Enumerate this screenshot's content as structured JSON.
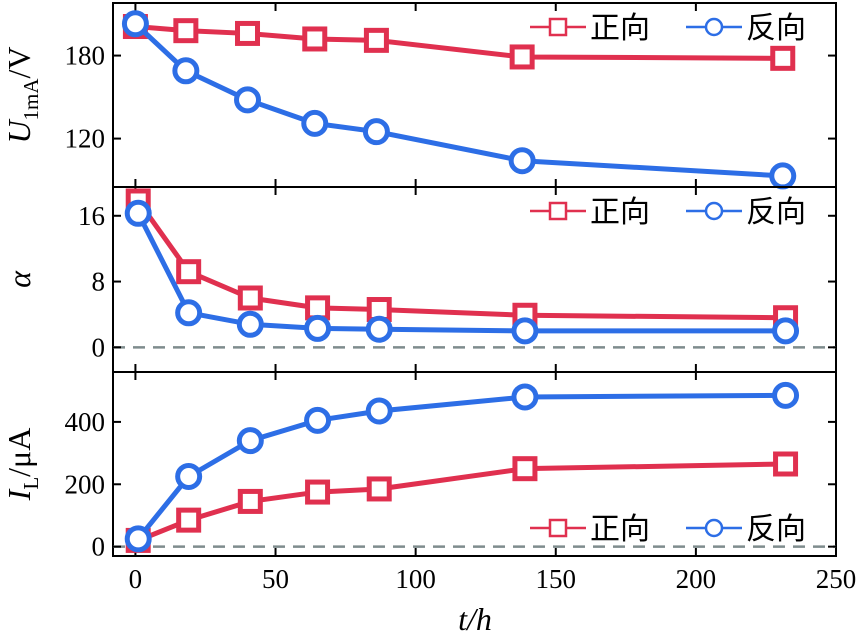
{
  "chart_data": {
    "type": "line",
    "xlabel": "t/h",
    "xlim": [
      -8,
      250
    ],
    "xticks": [
      0,
      50,
      100,
      150,
      200,
      250
    ],
    "xtick_labels": [
      "0",
      "50",
      "100",
      "150",
      "200",
      "250"
    ],
    "colors": {
      "forward": "#e0304f",
      "reverse": "#2d6ee6",
      "zero_line": "#7f8c8d"
    },
    "panels": [
      {
        "id": "u1ma",
        "ylabel": {
          "main": "U",
          "sub": "1mA",
          "unit": "/V"
        },
        "ylim": [
          85,
          218
        ],
        "yticks": [
          120,
          180
        ],
        "ytick_labels": [
          "120",
          "180"
        ],
        "zero_line": false,
        "legend_position": "top-right",
        "series": [
          {
            "key": "forward",
            "name": "正向",
            "marker": "square",
            "x": [
              0,
              18,
              40,
              64,
              86,
              138,
              231
            ],
            "y": [
              201,
              198,
              196,
              192,
              191,
              179,
              178
            ]
          },
          {
            "key": "reverse",
            "name": "反向",
            "marker": "circle",
            "x": [
              0,
              18,
              40,
              64,
              86,
              138,
              231
            ],
            "y": [
              203,
              169,
              148,
              131,
              125,
              104,
              93
            ]
          }
        ]
      },
      {
        "id": "alpha",
        "ylabel": {
          "main": "α",
          "sub": "",
          "unit": ""
        },
        "ylim": [
          -3,
          19.5
        ],
        "yticks": [
          0,
          8,
          16
        ],
        "ytick_labels": [
          "0",
          "8",
          "16"
        ],
        "zero_line": true,
        "legend_position": "top-right",
        "series": [
          {
            "key": "forward",
            "name": "正向",
            "marker": "square",
            "x": [
              1,
              19,
              41,
              65,
              87,
              139,
              232
            ],
            "y": [
              17.8,
              9.2,
              6.0,
              4.8,
              4.6,
              3.9,
              3.6
            ]
          },
          {
            "key": "reverse",
            "name": "反向",
            "marker": "circle",
            "x": [
              1,
              19,
              41,
              65,
              87,
              139,
              232
            ],
            "y": [
              16.3,
              4.2,
              2.8,
              2.3,
              2.2,
              2.0,
              2.0
            ]
          }
        ]
      },
      {
        "id": "il",
        "ylabel": {
          "main": "I",
          "sub": "L",
          "unit": "/μA"
        },
        "ylim": [
          -30,
          560
        ],
        "yticks": [
          0,
          200,
          400
        ],
        "ytick_labels": [
          "0",
          "200",
          "400"
        ],
        "zero_line": true,
        "legend_position": "bottom-right",
        "series": [
          {
            "key": "forward",
            "name": "正向",
            "marker": "square",
            "x": [
              1,
              19,
              41,
              65,
              87,
              139,
              232
            ],
            "y": [
              20,
              85,
              145,
              175,
              185,
              250,
              265
            ]
          },
          {
            "key": "reverse",
            "name": "反向",
            "marker": "circle",
            "x": [
              1,
              19,
              41,
              65,
              87,
              139,
              232
            ],
            "y": [
              25,
              225,
              340,
              405,
              435,
              480,
              485
            ]
          }
        ]
      }
    ]
  }
}
